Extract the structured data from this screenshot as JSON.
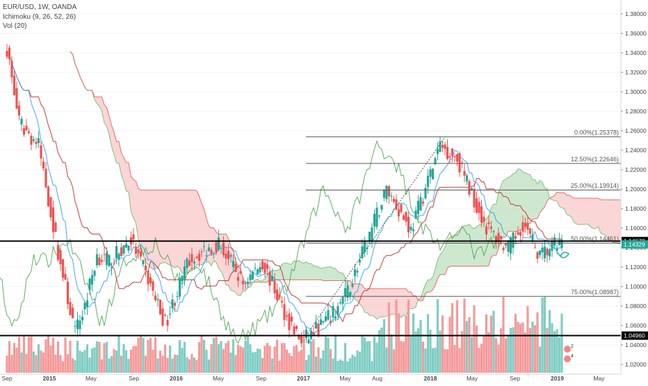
{
  "header": {
    "symbol_line": "EUR/USD, 1W, OANDA",
    "indicator_line": "Ichimoku (9, 26, 52, 26)",
    "volume_line": "Vol (20)"
  },
  "colors": {
    "up_candle": "#26a69a",
    "down_candle": "#ef5350",
    "up_volume": "#7fcdc4",
    "down_volume": "#f49a9a",
    "cloud_bull": "#a5d6a7",
    "cloud_bear": "#f8b4b4",
    "conversion_line": "#2196f3",
    "base_line": "#b71c1c",
    "lagging_span": "#43a047",
    "lead_a": "#66bb6a",
    "lead_b": "#ef5350",
    "fib_line": "#555555",
    "hline": "#000000",
    "last_price_tag": "#26a69a"
  },
  "chart_data": {
    "type": "candlestick",
    "symbol": "EUR/USD",
    "timeframe": "1W",
    "source": "OANDA",
    "x_labels": [
      "Sep",
      "2015",
      "May",
      "Sep",
      "2016",
      "May",
      "Sep",
      "2017",
      "May",
      "Aug",
      "2018",
      "May",
      "Sep",
      "2019",
      "May"
    ],
    "y_ticks": [
      "1.38000",
      "1.36000",
      "1.34000",
      "1.32000",
      "1.30000",
      "1.28000",
      "1.26000",
      "1.24000",
      "1.22000",
      "1.20000",
      "1.18000",
      "1.16000",
      "1.14000",
      "1.12000",
      "1.10000",
      "1.08000",
      "1.06000",
      "1.04000",
      "1.02000"
    ],
    "ylim": [
      1.012,
      1.392
    ],
    "price_checkpoints": [
      {
        "date": "2014-09-01",
        "close": 1.345
      },
      {
        "date": "2014-10-06",
        "close": 1.268
      },
      {
        "date": "2014-12-01",
        "close": 1.245
      },
      {
        "date": "2015-01-26",
        "close": 1.135
      },
      {
        "date": "2015-03-16",
        "close": 1.052
      },
      {
        "date": "2015-04-13",
        "close": 1.081
      },
      {
        "date": "2015-05-18",
        "close": 1.132
      },
      {
        "date": "2015-06-22",
        "close": 1.125
      },
      {
        "date": "2015-08-24",
        "close": 1.148
      },
      {
        "date": "2015-10-19",
        "close": 1.101
      },
      {
        "date": "2015-11-30",
        "close": 1.062
      },
      {
        "date": "2016-02-08",
        "close": 1.128
      },
      {
        "date": "2016-05-02",
        "close": 1.145
      },
      {
        "date": "2016-07-11",
        "close": 1.103
      },
      {
        "date": "2016-09-05",
        "close": 1.125
      },
      {
        "date": "2016-11-14",
        "close": 1.068
      },
      {
        "date": "2016-12-26",
        "close": 1.043
      },
      {
        "date": "2017-03-27",
        "close": 1.071
      },
      {
        "date": "2017-05-08",
        "close": 1.095
      },
      {
        "date": "2017-06-26",
        "close": 1.139
      },
      {
        "date": "2017-08-28",
        "close": 1.201
      },
      {
        "date": "2017-11-06",
        "close": 1.158
      },
      {
        "date": "2018-01-29",
        "close": 1.245
      },
      {
        "date": "2018-03-19",
        "close": 1.232
      },
      {
        "date": "2018-04-30",
        "close": 1.195
      },
      {
        "date": "2018-06-11",
        "close": 1.161
      },
      {
        "date": "2018-08-13",
        "close": 1.138
      },
      {
        "date": "2018-09-24",
        "close": 1.165
      },
      {
        "date": "2018-11-12",
        "close": 1.131
      },
      {
        "date": "2018-12-24",
        "close": 1.142
      },
      {
        "date": "2019-01-14",
        "close": 1.143
      }
    ],
    "fibonacci_levels": [
      {
        "label": "0.00%(1.25378)",
        "value": 1.25378
      },
      {
        "label": "12.50%(1.22646)",
        "value": 1.22646
      },
      {
        "label": "25.00%(1.19914)",
        "value": 1.19914
      },
      {
        "label": "50.00%(1.14451)",
        "value": 1.14451
      },
      {
        "label": "75.00%(1.08987)",
        "value": 1.08987
      }
    ],
    "horizontal_lines": [
      {
        "label": "1.14670",
        "value": 1.1467
      },
      {
        "label": "1.04960",
        "value": 1.0496
      }
    ],
    "last_price": {
      "label": "1.14329",
      "value": 1.14329
    },
    "cursor_markers": [
      "2",
      "4"
    ]
  }
}
